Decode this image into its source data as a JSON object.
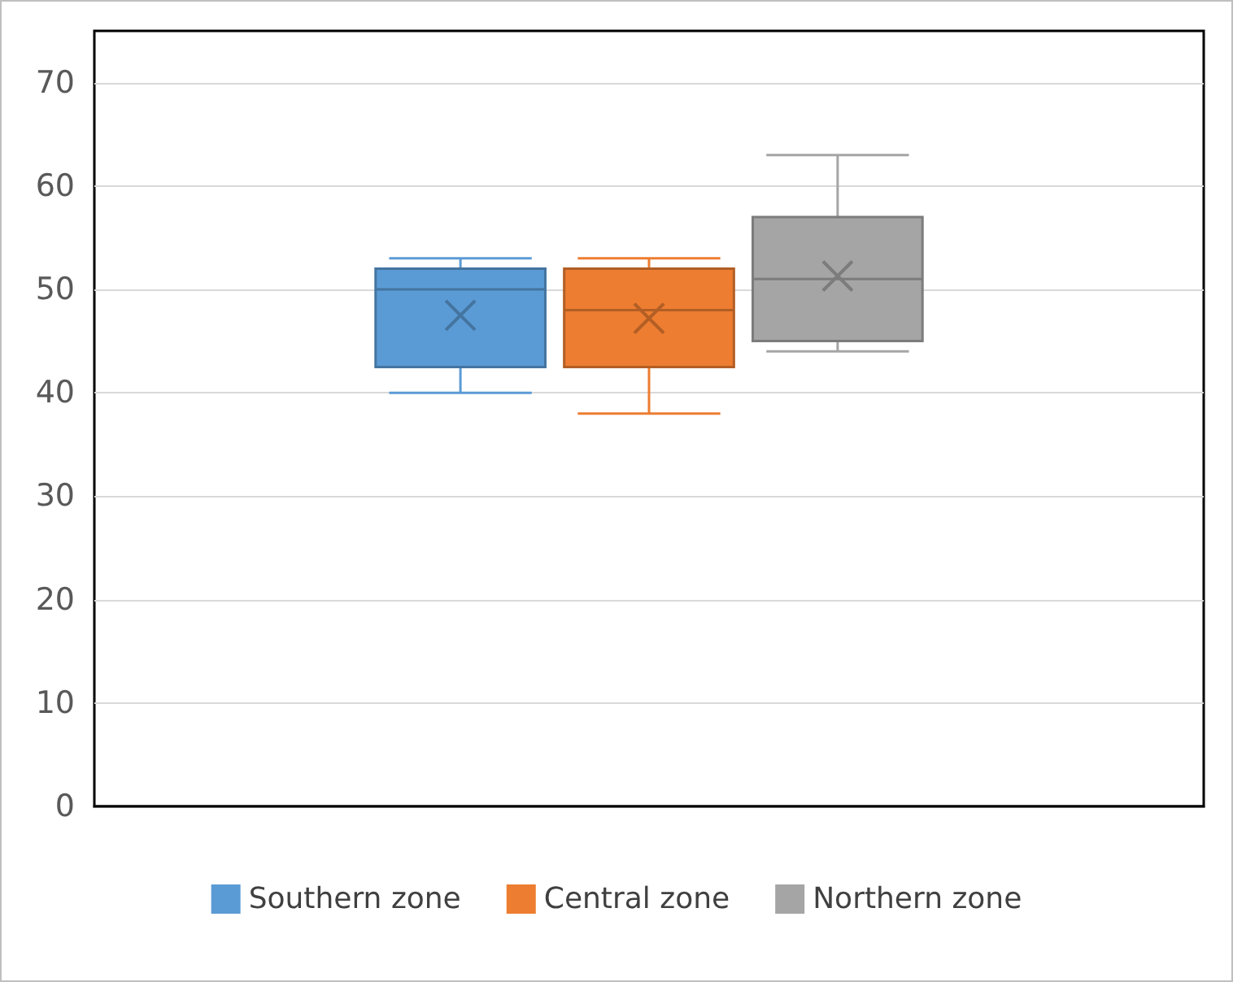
{
  "chart_data": {
    "type": "box",
    "categories": [
      null
    ],
    "series": [
      {
        "name": "Southern zone",
        "color": "#5b9bd5",
        "boxes": [
          {
            "low": 40,
            "q1": 42.5,
            "median": 50,
            "q3": 52,
            "high": 53,
            "mean": 47.5
          }
        ]
      },
      {
        "name": "Central zone",
        "color": "#ed7d31",
        "boxes": [
          {
            "low": 38,
            "q1": 42.5,
            "median": 48,
            "q3": 52,
            "high": 53,
            "mean": 47.2
          }
        ]
      },
      {
        "name": "Northern zone",
        "color": "#a5a5a5",
        "boxes": [
          {
            "low": 44,
            "q1": 45,
            "median": 51,
            "q3": 57,
            "high": 63,
            "mean": 51.3
          }
        ]
      }
    ],
    "ylim": [
      0,
      75
    ],
    "yticks": [
      0,
      10,
      20,
      30,
      40,
      50,
      60,
      70
    ],
    "grid": "y",
    "legend": "bottom"
  }
}
